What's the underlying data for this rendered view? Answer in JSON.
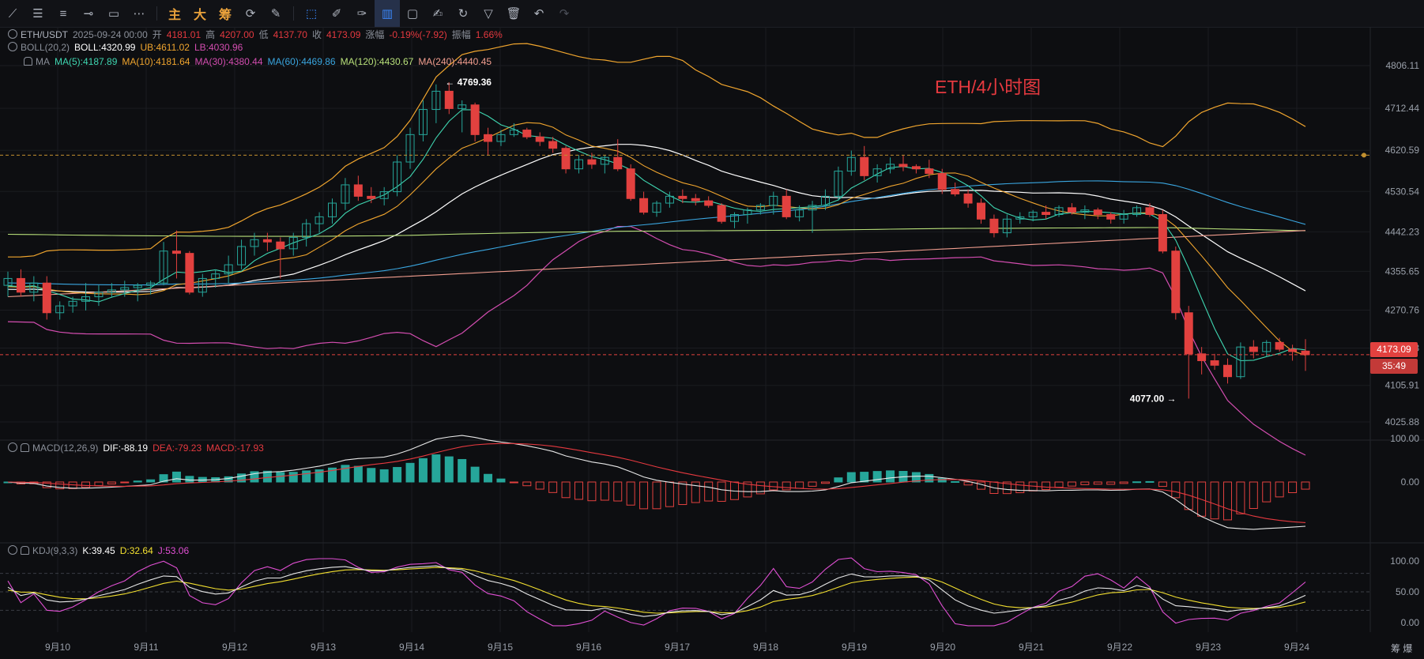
{
  "toolbar": {
    "items": [
      {
        "name": "trend-line-icon",
        "glyph": "⟋"
      },
      {
        "name": "horizontal-lines-icon",
        "glyph": "☰"
      },
      {
        "name": "parallel-lines-icon",
        "glyph": "≡"
      },
      {
        "name": "cross-line-icon",
        "glyph": "⊸"
      },
      {
        "name": "rectangle-icon",
        "glyph": "▭"
      },
      {
        "name": "more-icon",
        "glyph": "⋯"
      },
      {
        "name": "sep"
      },
      {
        "name": "main-indicator-button",
        "glyph": "主",
        "text": true
      },
      {
        "name": "big-button",
        "glyph": "大",
        "text": true
      },
      {
        "name": "chip-button",
        "glyph": "筹",
        "text": true
      },
      {
        "name": "gauge-icon",
        "glyph": "⟳"
      },
      {
        "name": "brush-icon",
        "glyph": "✎"
      },
      {
        "name": "sep"
      },
      {
        "name": "cursor-icon",
        "glyph": "⬚",
        "sel": true
      },
      {
        "name": "ruler-icon",
        "glyph": "✐"
      },
      {
        "name": "pen-icon",
        "glyph": "✑"
      },
      {
        "name": "candles-icon",
        "glyph": "▥",
        "boxsel": true
      },
      {
        "name": "clipboard-icon",
        "glyph": "▢"
      },
      {
        "name": "edit-icon",
        "glyph": "✍"
      },
      {
        "name": "magnet-icon",
        "glyph": "↻"
      },
      {
        "name": "filter-icon",
        "glyph": "▽"
      },
      {
        "name": "trash-icon",
        "glyph": "🗑"
      },
      {
        "name": "undo-icon",
        "glyph": "↶"
      },
      {
        "name": "redo-icon",
        "glyph": "↷",
        "dim": true
      }
    ]
  },
  "legend": {
    "row1": [
      {
        "t": "ETH/USDT",
        "c": "#aeb3bd"
      },
      {
        "t": "2025-09-24 00:00",
        "c": "#8a8f99"
      },
      {
        "t": "开",
        "c": "#8a8f99"
      },
      {
        "t": "4181.01",
        "c": "#e5393f"
      },
      {
        "t": "高",
        "c": "#8a8f99"
      },
      {
        "t": "4207.00",
        "c": "#e5393f"
      },
      {
        "t": "低",
        "c": "#8a8f99"
      },
      {
        "t": "4137.70",
        "c": "#e5393f"
      },
      {
        "t": "收",
        "c": "#8a8f99"
      },
      {
        "t": "4173.09",
        "c": "#e5393f"
      },
      {
        "t": "涨幅",
        "c": "#8a8f99"
      },
      {
        "t": "-0.19%(-7.92)",
        "c": "#e5393f"
      },
      {
        "t": "振幅",
        "c": "#8a8f99"
      },
      {
        "t": "1.66%",
        "c": "#e5393f"
      }
    ],
    "row2": [
      {
        "t": "BOLL(20,2)",
        "c": "#8a8f99"
      },
      {
        "t": "BOLL:4320.99",
        "c": "#ffffff"
      },
      {
        "t": "UB:4611.02",
        "c": "#f0a52e"
      },
      {
        "t": "LB:4030.96",
        "c": "#d34db0"
      }
    ],
    "row3": [
      {
        "t": "MA",
        "c": "#8a8f99"
      },
      {
        "t": "MA(5):4187.89",
        "c": "#3fd6b1"
      },
      {
        "t": "MA(10):4181.64",
        "c": "#f0a52e"
      },
      {
        "t": "MA(30):4380.44",
        "c": "#d34db0"
      },
      {
        "t": "MA(60):4469.86",
        "c": "#3aa6e0"
      },
      {
        "t": "MA(120):4430.67",
        "c": "#b8e07a"
      },
      {
        "t": "MA(240):4440.45",
        "c": "#f29e8f"
      }
    ],
    "macd": [
      {
        "t": "MACD(12,26,9)",
        "c": "#8a8f99"
      },
      {
        "t": "DIF:-88.19",
        "c": "#ffffff"
      },
      {
        "t": "DEA:-79.23",
        "c": "#e5393f"
      },
      {
        "t": "MACD:-17.93",
        "c": "#e5393f"
      }
    ],
    "kdj": [
      {
        "t": "KDJ(9,3,3)",
        "c": "#8a8f99"
      },
      {
        "t": "K:39.45",
        "c": "#ffffff"
      },
      {
        "t": "D:32.64",
        "c": "#f3e030"
      },
      {
        "t": "J:53.06",
        "c": "#e04fd3"
      }
    ]
  },
  "chart_title": "ETH/4小时图",
  "price_tag": {
    "price": "4173.09",
    "countdown": "35:49"
  },
  "annotations": {
    "high_label": "← 4769.36",
    "low_label": "4077.00 →",
    "high": 4769.36,
    "low": 4077.0
  },
  "right_side_text": "筹 爆",
  "colors": {
    "up": "#26a69a",
    "down": "#e2413f",
    "bg": "#0d0e11",
    "grid": "#1a1c21"
  },
  "chart_data": {
    "type": "candlestick",
    "symbol": "ETH/USDT",
    "interval": "4h",
    "y_ticks": [
      4806.11,
      4712.44,
      4620.59,
      4530.54,
      4442.23,
      4355.65,
      4270.76,
      4187.53,
      4105.91,
      4025.88
    ],
    "x_labels": [
      "9月10",
      "9月11",
      "9月12",
      "9月13",
      "9月14",
      "9月15",
      "9月16",
      "9月17",
      "9月18",
      "9月19",
      "9月20",
      "9月21",
      "9月22",
      "9月23",
      "9月24"
    ],
    "candles": [
      [
        4325,
        4355,
        4300,
        4340
      ],
      [
        4340,
        4360,
        4300,
        4310
      ],
      [
        4310,
        4345,
        4290,
        4330
      ],
      [
        4330,
        4345,
        4250,
        4265
      ],
      [
        4265,
        4290,
        4250,
        4280
      ],
      [
        4280,
        4300,
        4265,
        4290
      ],
      [
        4290,
        4330,
        4270,
        4300
      ],
      [
        4300,
        4325,
        4280,
        4310
      ],
      [
        4310,
        4330,
        4300,
        4315
      ],
      [
        4315,
        4335,
        4300,
        4320
      ],
      [
        4320,
        4330,
        4290,
        4325
      ],
      [
        4325,
        4335,
        4305,
        4330
      ],
      [
        4330,
        4420,
        4325,
        4400
      ],
      [
        4400,
        4445,
        4340,
        4395
      ],
      [
        4395,
        4400,
        4305,
        4310
      ],
      [
        4310,
        4350,
        4300,
        4340
      ],
      [
        4340,
        4360,
        4320,
        4350
      ],
      [
        4350,
        4390,
        4330,
        4370
      ],
      [
        4370,
        4425,
        4360,
        4410
      ],
      [
        4410,
        4440,
        4390,
        4425
      ],
      [
        4425,
        4440,
        4400,
        4420
      ],
      [
        4420,
        4430,
        4340,
        4405
      ],
      [
        4405,
        4440,
        4390,
        4430
      ],
      [
        4430,
        4470,
        4410,
        4460
      ],
      [
        4460,
        4485,
        4440,
        4475
      ],
      [
        4475,
        4515,
        4460,
        4505
      ],
      [
        4505,
        4560,
        4490,
        4545
      ],
      [
        4545,
        4565,
        4510,
        4520
      ],
      [
        4520,
        4540,
        4505,
        4515
      ],
      [
        4515,
        4540,
        4500,
        4530
      ],
      [
        4530,
        4610,
        4520,
        4595
      ],
      [
        4595,
        4670,
        4580,
        4655
      ],
      [
        4655,
        4730,
        4640,
        4710
      ],
      [
        4710,
        4765,
        4680,
        4750
      ],
      [
        4750,
        4769.36,
        4700,
        4712
      ],
      [
        4712,
        4730,
        4660,
        4720
      ],
      [
        4720,
        4725,
        4640,
        4655
      ],
      [
        4655,
        4670,
        4610,
        4640
      ],
      [
        4640,
        4665,
        4630,
        4655
      ],
      [
        4655,
        4680,
        4650,
        4665
      ],
      [
        4665,
        4670,
        4645,
        4650
      ],
      [
        4650,
        4660,
        4630,
        4640
      ],
      [
        4640,
        4650,
        4615,
        4625
      ],
      [
        4625,
        4630,
        4570,
        4580
      ],
      [
        4580,
        4610,
        4570,
        4600
      ],
      [
        4600,
        4615,
        4580,
        4590
      ],
      [
        4590,
        4610,
        4570,
        4605
      ],
      [
        4605,
        4645,
        4575,
        4580
      ],
      [
        4580,
        4590,
        4510,
        4515
      ],
      [
        4515,
        4530,
        4480,
        4485
      ],
      [
        4485,
        4510,
        4475,
        4505
      ],
      [
        4505,
        4530,
        4495,
        4520
      ],
      [
        4520,
        4535,
        4505,
        4515
      ],
      [
        4515,
        4525,
        4500,
        4510
      ],
      [
        4510,
        4520,
        4495,
        4500
      ],
      [
        4500,
        4505,
        4460,
        4465
      ],
      [
        4465,
        4485,
        4450,
        4480
      ],
      [
        4480,
        4495,
        4460,
        4490
      ],
      [
        4490,
        4505,
        4480,
        4500
      ],
      [
        4500,
        4530,
        4480,
        4520
      ],
      [
        4520,
        4535,
        4470,
        4475
      ],
      [
        4475,
        4500,
        4465,
        4490
      ],
      [
        4490,
        4510,
        4440,
        4500
      ],
      [
        4500,
        4535,
        4490,
        4520
      ],
      [
        4520,
        4585,
        4510,
        4575
      ],
      [
        4575,
        4620,
        4565,
        4605
      ],
      [
        4605,
        4630,
        4555,
        4565
      ],
      [
        4565,
        4590,
        4550,
        4580
      ],
      [
        4580,
        4605,
        4570,
        4590
      ],
      [
        4590,
        4610,
        4575,
        4585
      ],
      [
        4585,
        4590,
        4570,
        4580
      ],
      [
        4580,
        4600,
        4560,
        4570
      ],
      [
        4570,
        4580,
        4525,
        4535
      ],
      [
        4535,
        4550,
        4520,
        4525
      ],
      [
        4525,
        4535,
        4495,
        4505
      ],
      [
        4505,
        4515,
        4460,
        4470
      ],
      [
        4470,
        4480,
        4430,
        4440
      ],
      [
        4440,
        4480,
        4430,
        4470
      ],
      [
        4470,
        4485,
        4460,
        4475
      ],
      [
        4475,
        4490,
        4465,
        4485
      ],
      [
        4485,
        4500,
        4470,
        4480
      ],
      [
        4480,
        4500,
        4475,
        4495
      ],
      [
        4495,
        4505,
        4480,
        4485
      ],
      [
        4485,
        4500,
        4470,
        4490
      ],
      [
        4490,
        4495,
        4470,
        4480
      ],
      [
        4480,
        4485,
        4460,
        4470
      ],
      [
        4470,
        4490,
        4460,
        4480
      ],
      [
        4480,
        4500,
        4475,
        4495
      ],
      [
        4495,
        4505,
        4475,
        4480
      ],
      [
        4480,
        4490,
        4395,
        4400
      ],
      [
        4400,
        4410,
        4250,
        4265
      ],
      [
        4265,
        4280,
        4077,
        4175
      ],
      [
        4175,
        4190,
        4130,
        4160
      ],
      [
        4160,
        4175,
        4140,
        4150
      ],
      [
        4150,
        4165,
        4110,
        4125
      ],
      [
        4125,
        4200,
        4120,
        4190
      ],
      [
        4190,
        4205,
        4165,
        4180
      ],
      [
        4180,
        4205,
        4170,
        4200
      ],
      [
        4200,
        4210,
        4180,
        4185
      ],
      [
        4185,
        4195,
        4160,
        4180
      ],
      [
        4181.01,
        4207,
        4137.7,
        4173.09
      ]
    ],
    "macd": {
      "dif_last": -88.19,
      "dea_last": -79.23,
      "hist_last": -17.93,
      "y_ticks": [
        100,
        0
      ]
    },
    "kdj": {
      "k_last": 39.45,
      "d_last": 32.64,
      "j_last": 53.06,
      "y_ticks": [
        100,
        50,
        0
      ]
    }
  }
}
